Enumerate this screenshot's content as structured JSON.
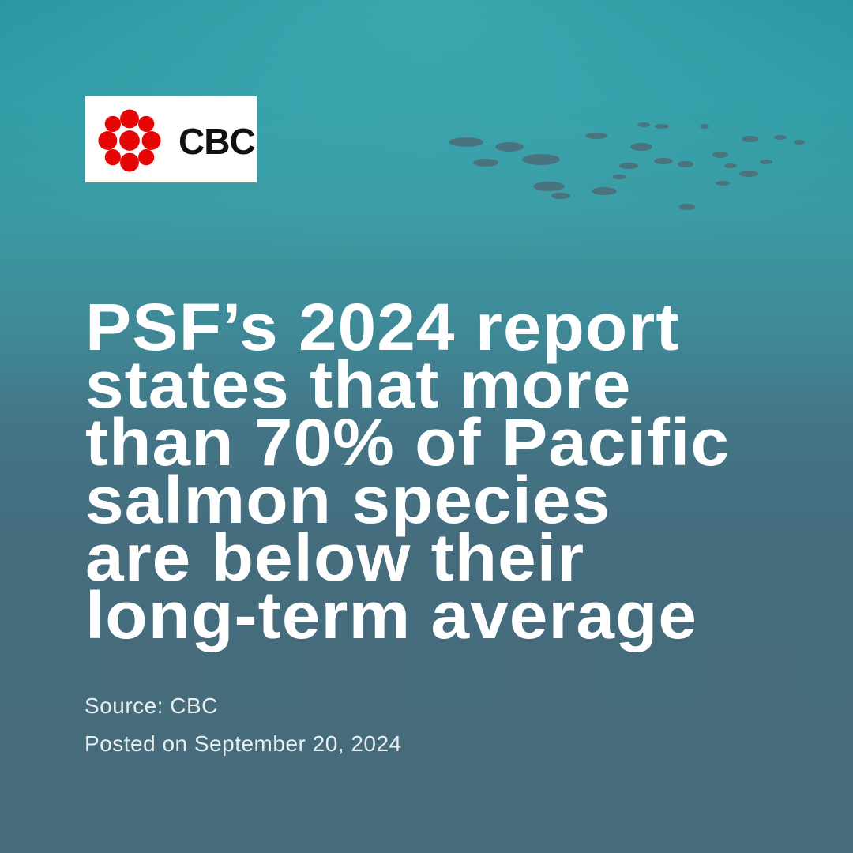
{
  "logo": {
    "text": "CBC"
  },
  "headline": {
    "lines": [
      "PSF’s 2024 report",
      "states that more",
      "than 70% of Pacific",
      "salmon species",
      "are below their",
      "long-term average"
    ]
  },
  "footer": {
    "source": "Source: CBC",
    "posted": "Posted on September 20, 2024"
  }
}
